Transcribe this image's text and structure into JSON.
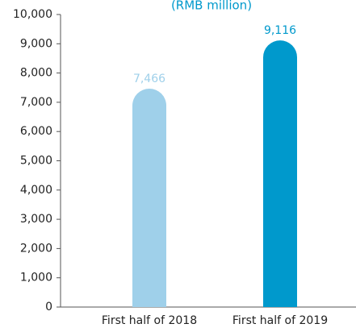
{
  "chart_data": {
    "type": "bar",
    "title": "(RMB million)",
    "categories": [
      "First half of 2018",
      "First half of 2019"
    ],
    "values": [
      7466,
      9116
    ],
    "value_labels": [
      "7,466",
      "9,116"
    ],
    "colors": [
      "#9fd0ea",
      "#0099cc"
    ],
    "ylim": [
      0,
      10000
    ],
    "yticks": [
      0,
      {
        "value": 1000,
        "label": "1,000"
      },
      {
        "value": 2000,
        "label": "2,000"
      },
      {
        "value": 3000,
        "label": "3,000"
      },
      {
        "value": 4000,
        "label": "4,000"
      },
      {
        "value": 5000,
        "label": "5,000"
      },
      {
        "value": 6000,
        "label": "6,000"
      },
      {
        "value": 7000,
        "label": "7,000"
      },
      {
        "value": 8000,
        "label": "8,000"
      },
      {
        "value": 9000,
        "label": "9,000"
      },
      {
        "value": 10000,
        "label": "10,000"
      }
    ],
    "grid": false
  }
}
